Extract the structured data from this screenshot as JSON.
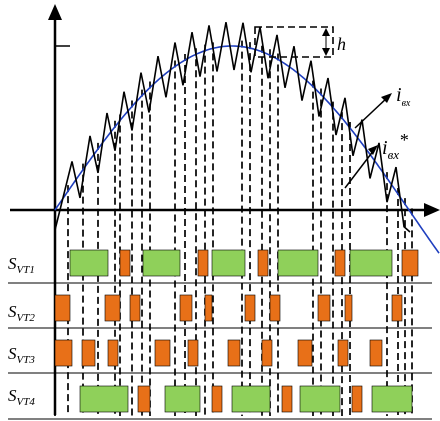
{
  "labels": {
    "h": "h",
    "i_in": "i",
    "i_in_sub": "вх",
    "i_ref": "i",
    "i_ref_sub": "вх",
    "i_ref_star": "*",
    "signal_main": "S",
    "signals": [
      "VT1",
      "VT2",
      "VT3",
      "VT4"
    ]
  },
  "colors": {
    "reference_sine": "#1f3fbf",
    "current": "#000000",
    "pulse_green": "#8fd05a",
    "pulse_orange": "#e87018",
    "dashed": "#000000"
  }
}
